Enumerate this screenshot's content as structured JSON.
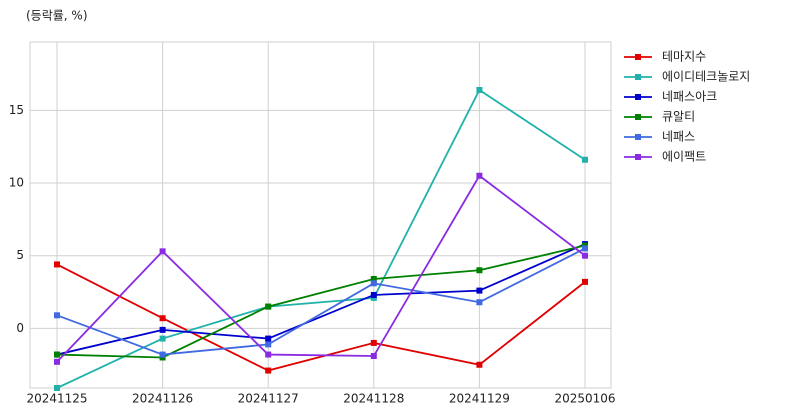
{
  "chart_data": {
    "type": "line",
    "y_label": "(등락률, %)",
    "categories": [
      "20241125",
      "20241126",
      "20241127",
      "20241128",
      "20241129",
      "20250106"
    ],
    "series": [
      {
        "name": "테마지수",
        "color": "#e00000",
        "values": [
          4.4,
          0.7,
          -2.9,
          -1.0,
          -2.5,
          3.2
        ]
      },
      {
        "name": "에이디테크놀로지",
        "color": "#20b2aa",
        "values": [
          -4.1,
          -0.7,
          1.5,
          2.1,
          16.4,
          11.6
        ]
      },
      {
        "name": "네패스아크",
        "color": "#0000cd",
        "values": [
          -1.8,
          -0.1,
          -0.7,
          2.3,
          2.6,
          5.8
        ]
      },
      {
        "name": "큐알티",
        "color": "#008000",
        "values": [
          -1.8,
          -2.0,
          1.5,
          3.4,
          4.0,
          5.7
        ]
      },
      {
        "name": "네패스",
        "color": "#4169e1",
        "values": [
          0.9,
          -1.8,
          -1.1,
          3.1,
          1.8,
          5.5
        ]
      },
      {
        "name": "에이팩트",
        "color": "#8a2be2",
        "values": [
          -2.3,
          5.3,
          -1.8,
          -1.9,
          10.5,
          5.0
        ]
      }
    ],
    "ylim": [
      -4.1,
      19.7
    ],
    "yticks": [
      0,
      5,
      10,
      15
    ],
    "grid": true,
    "legend": "right"
  }
}
